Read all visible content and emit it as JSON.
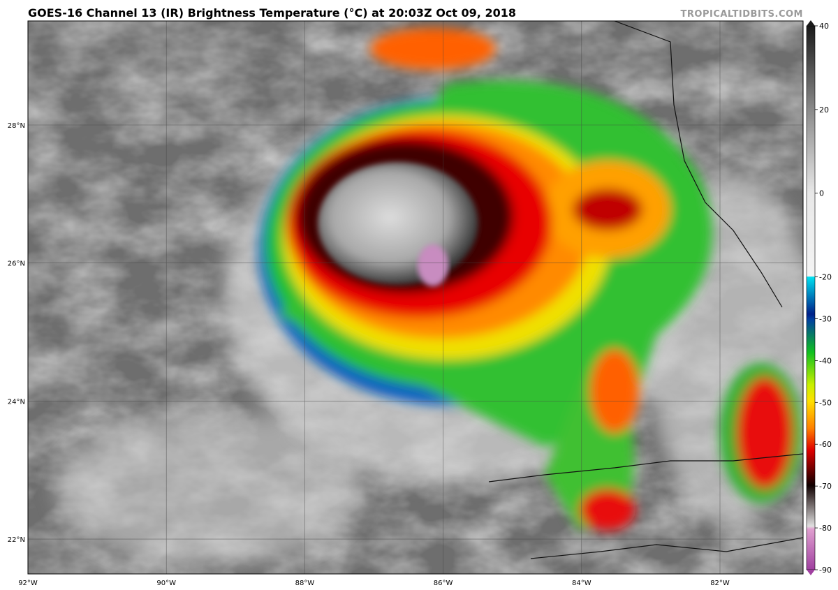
{
  "header": {
    "title": "GOES-16 Channel 13 (IR) Brightness Temperature (°C) at 20:03Z Oct 09, 2018",
    "credit": "TROPICALTIDBITS.COM"
  },
  "map": {
    "lat_labels": [
      "28°N",
      "26°N",
      "24°N",
      "22°N"
    ],
    "lon_labels": [
      "92°W",
      "90°W",
      "88°W",
      "86°W",
      "84°W",
      "82°W"
    ]
  },
  "colorbar": {
    "ticks": [
      40,
      20,
      0,
      -20,
      -30,
      -40,
      -50,
      -60,
      -70,
      -80,
      -90
    ]
  }
}
